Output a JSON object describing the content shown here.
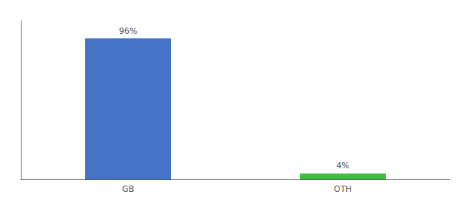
{
  "chart_data": {
    "type": "bar",
    "categories": [
      "GB",
      "OTH"
    ],
    "values": [
      96,
      4
    ],
    "value_labels": [
      "96%",
      "4%"
    ],
    "colors": [
      "#4472C4",
      "#3DBE3D"
    ],
    "ylim": [
      0,
      108
    ],
    "grid": false,
    "data_labels": true,
    "tick_labels": "x"
  }
}
